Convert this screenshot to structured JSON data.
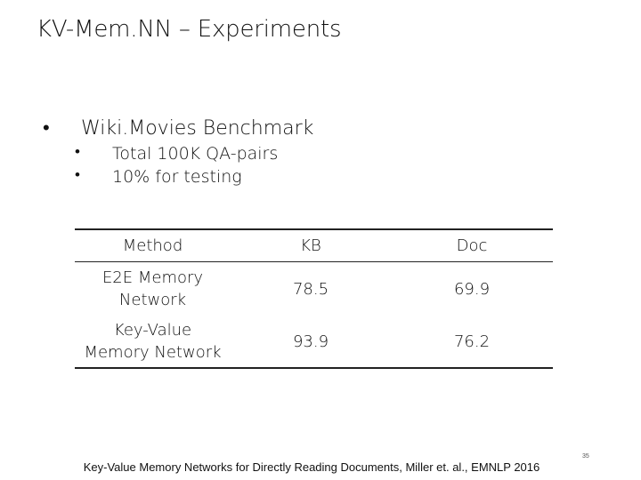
{
  "slide": {
    "title": "KV-Mem.NN – Experiments",
    "bullet": "Wiki.Movies Benchmark",
    "bullet_marker": "•",
    "subbullets": [
      "Total 100K QA-pairs",
      "10% for testing"
    ],
    "table": {
      "headers": [
        "Method",
        "KB",
        "Doc"
      ],
      "rows": [
        {
          "method_line1": "E2E Memory",
          "method_line2": "Network",
          "kb": "78.5",
          "doc": "69.9"
        },
        {
          "method_line1": "Key-Value",
          "method_line2": "Memory Network",
          "kb": "93.9",
          "doc": "76.2"
        }
      ]
    },
    "footer": "Key-Value Memory Networks for Directly Reading Documents, Miller et. al., EMNLP 2016",
    "page_number": "35"
  }
}
